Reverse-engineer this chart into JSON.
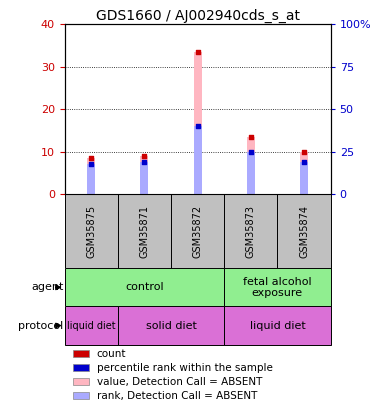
{
  "title": "GDS1660 / AJ002940cds_s_at",
  "samples": [
    "GSM35875",
    "GSM35871",
    "GSM35872",
    "GSM35873",
    "GSM35874"
  ],
  "pink_bar_heights": [
    8.5,
    9.0,
    33.5,
    13.5,
    10.0
  ],
  "blue_bar_heights": [
    7.0,
    7.5,
    16.0,
    10.0,
    7.5
  ],
  "ylim_left": [
    0,
    40
  ],
  "ylim_right": [
    0,
    100
  ],
  "yticks_left": [
    0,
    10,
    20,
    30,
    40
  ],
  "yticks_right": [
    0,
    25,
    50,
    75,
    100
  ],
  "ytick_labels_right": [
    "0",
    "25",
    "50",
    "75",
    "100%"
  ],
  "legend_items": [
    {
      "color": "#cc0000",
      "label": "count"
    },
    {
      "color": "#0000cc",
      "label": "percentile rank within the sample"
    },
    {
      "color": "#ffb6c1",
      "label": "value, Detection Call = ABSENT"
    },
    {
      "color": "#aaaaff",
      "label": "rank, Detection Call = ABSENT"
    }
  ],
  "bar_color_pink": "#ffb6c1",
  "bar_color_blue": "#aaaaff",
  "dot_color_red": "#cc0000",
  "dot_color_blue": "#0000cc",
  "grid_color": "black",
  "label_color_left": "#cc0000",
  "label_color_right": "#0000cc",
  "sample_bg_color": "#c0c0c0",
  "title_fontsize": 10,
  "tick_fontsize": 8,
  "bar_width": 0.15,
  "dot_size": 12
}
